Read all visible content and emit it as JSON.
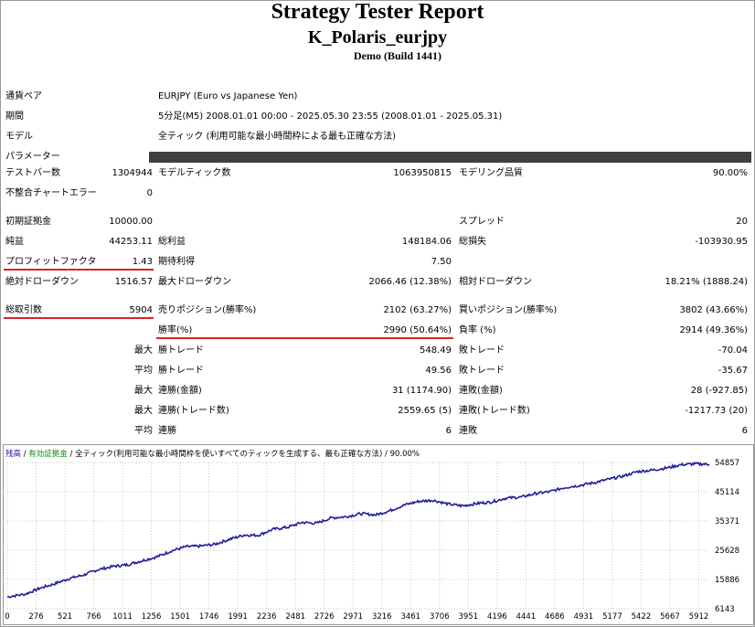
{
  "header": {
    "title": "Strategy Tester Report",
    "subtitle": "K_Polaris_eurjpy",
    "build": "Demo (Build 1441)"
  },
  "info": {
    "pair_label": "通貨ペア",
    "pair_value": "EURJPY (Euro vs Japanese Yen)",
    "period_label": "期間",
    "period_value": "5分足(M5) 2008.01.01 00:00 - 2025.05.30 23:55 (2008.01.01 - 2025.05.31)",
    "model_label": "モデル",
    "model_value": "全ティック (利用可能な最小時間枠による最も正確な方法)",
    "params_label": "パラメーター"
  },
  "stats": {
    "bars_label": "テストバー数",
    "bars_value": "1304944",
    "ticks_label": "モデルティック数",
    "ticks_value": "1063950815",
    "quality_label": "モデリング品質",
    "quality_value": "90.00%",
    "mismatch_label": "不整合チャートエラー",
    "mismatch_value": "0",
    "deposit_label": "初期証拠金",
    "deposit_value": "10000.00",
    "spread_label": "スプレッド",
    "spread_value": "20",
    "net_label": "純益",
    "net_value": "44253.11",
    "gross_profit_label": "総利益",
    "gross_profit_value": "148184.06",
    "gross_loss_label": "総損失",
    "gross_loss_value": "-103930.95",
    "pf_label": "プロフィットファクタ",
    "pf_value": "1.43",
    "expected_label": "期待利得",
    "expected_value": "7.50",
    "abs_dd_label": "絶対ドローダウン",
    "abs_dd_value": "1516.57",
    "max_dd_label": "最大ドローダウン",
    "max_dd_value": "2066.46 (12.38%)",
    "rel_dd_label": "相対ドローダウン",
    "rel_dd_value": "18.21% (1888.24)",
    "total_label": "総取引数",
    "total_value": "5904",
    "short_label": "売りポジション(勝率%)",
    "short_value": "2102 (63.27%)",
    "long_label": "買いポジション(勝率%)",
    "long_value": "3802 (43.66%)",
    "win_label": "勝率(%)",
    "win_value": "2990 (50.64%)",
    "loss_label": "負率 (%)",
    "loss_value": "2914 (49.36%)",
    "max_word": "最大",
    "avg_word": "平均",
    "max_win_label": "勝トレード",
    "max_win_value": "548.49",
    "max_loss_label": "敗トレード",
    "max_loss_value": "-70.04",
    "avg_win_label": "勝トレード",
    "avg_win_value": "49.56",
    "avg_loss_label": "敗トレード",
    "avg_loss_value": "-35.67",
    "consec_wins_money_label": "連勝(金額)",
    "consec_wins_money_value": "31 (1174.90)",
    "consec_loss_money_label": "連敗(金額)",
    "consec_loss_money_value": "28 (-927.85)",
    "max_consec_profit_label": "連勝(トレード数)",
    "max_consec_profit_value": "2559.65 (5)",
    "max_consec_loss_label": "連敗(トレード数)",
    "max_consec_loss_value": "-1217.73 (20)",
    "avg_consec_wins_label": "連勝",
    "avg_consec_wins_value": "6",
    "avg_consec_loss_label": "連敗",
    "avg_consec_loss_value": "6"
  },
  "chart_legend": {
    "balance": "残高",
    "sep": " / ",
    "equity": "有効証拠金",
    "sep2": " / ",
    "model": "全ティック(利用可能な最小時間枠を使いすべてのティックを生成する、最も正確な方法)",
    "sep3": " / ",
    "quality": "90.00%"
  },
  "chart_data": {
    "type": "line",
    "x_ticks": [
      "0",
      "276",
      "521",
      "766",
      "1011",
      "1256",
      "1501",
      "1746",
      "1991",
      "2236",
      "2481",
      "2726",
      "2971",
      "3216",
      "3461",
      "3706",
      "3951",
      "4196",
      "4441",
      "4686",
      "4931",
      "5177",
      "5422",
      "5667",
      "5912"
    ],
    "y_ticks": [
      "54857",
      "45114",
      "35371",
      "25628",
      "15886",
      "6143"
    ],
    "ylim": [
      6143,
      54857
    ],
    "xlim": [
      0,
      5904
    ],
    "series": [
      {
        "color": "#1f1f9a",
        "x": [
          0,
          150,
          276,
          400,
          521,
          650,
          766,
          900,
          1011,
          1130,
          1256,
          1380,
          1501,
          1620,
          1746,
          1870,
          1991,
          2110,
          2236,
          2360,
          2481,
          2600,
          2726,
          2850,
          2971,
          3100,
          3216,
          3340,
          3461,
          3580,
          3706,
          3830,
          3951,
          4070,
          4196,
          4320,
          4441,
          4560,
          4686,
          4810,
          4931,
          5050,
          5177,
          5300,
          5422,
          5540,
          5667,
          5790,
          5904
        ],
        "y": [
          10100,
          11000,
          13000,
          14500,
          16200,
          17500,
          19200,
          20300,
          20800,
          22100,
          23400,
          25400,
          26800,
          27000,
          27600,
          29300,
          30700,
          30600,
          32600,
          33300,
          34900,
          34600,
          36400,
          36800,
          37800,
          37400,
          38800,
          40700,
          41900,
          42300,
          41000,
          40400,
          41200,
          41700,
          43000,
          43300,
          44500,
          45100,
          46500,
          47200,
          48100,
          49200,
          50300,
          51800,
          52300,
          53000,
          54100,
          54400,
          54250
        ]
      }
    ]
  }
}
